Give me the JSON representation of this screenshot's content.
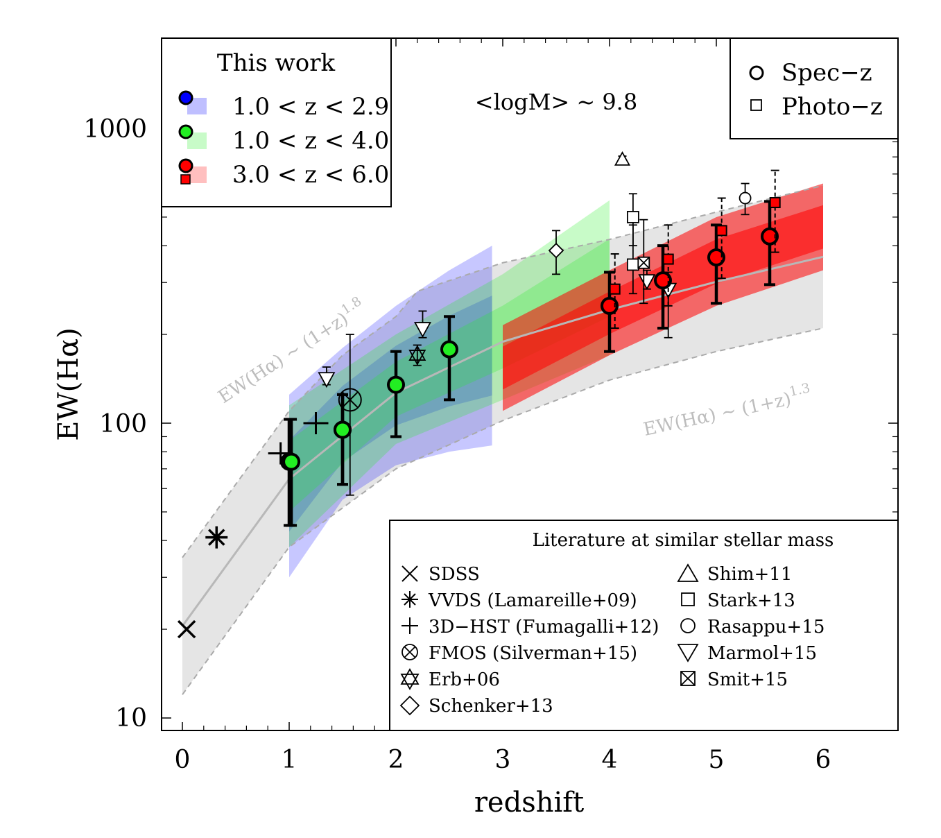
{
  "chart_data": {
    "type": "scatter",
    "xlabel": "redshift",
    "ylabel": "EW(Hα)",
    "xlim": [
      -0.2,
      6.7
    ],
    "ylim": [
      9,
      1800
    ],
    "yscale": "log",
    "x_ticks": [
      "0",
      "1",
      "2",
      "3",
      "4",
      "5",
      "6"
    ],
    "y_ticks": [
      "10",
      "100",
      "1000"
    ],
    "annotation_mass": "<logM> ~ 9.8",
    "curve_labels": {
      "upper": "EW(Hα) ~ (1+z)",
      "upper_exp": "1.8",
      "lower": "EW(Hα) ~ (1+z)",
      "lower_exp": "1.3"
    },
    "legend_this_work": {
      "title": "This work",
      "entries": [
        {
          "label": "1.0 < z < 2.9",
          "color": "#0000ff"
        },
        {
          "label": "1.0 < z < 4.0",
          "color": "#22ee22"
        },
        {
          "label": "3.0 < z < 6.0",
          "color": "#ff0000"
        }
      ]
    },
    "legend_marker": {
      "entries": [
        "Spec−z",
        "Photo−z"
      ]
    },
    "legend_literature": {
      "title": "Literature at similar stellar mass",
      "left": [
        "SDSS",
        "VVDS (Lamareille+09)",
        "3D−HST (Fumagalli+12)",
        "FMOS (Silverman+15)",
        "Erb+06",
        "Schenker+13"
      ],
      "right": [
        "Shim+11",
        "Stark+13",
        "Rasappu+15",
        "Marmol+15",
        "Smit+15"
      ]
    },
    "bands": [
      {
        "name": "grey",
        "color": "#cfcfcf",
        "upper": [
          [
            0,
            35
          ],
          [
            1,
            110
          ],
          [
            1.5,
            170
          ],
          [
            2,
            230
          ],
          [
            2.2,
            280
          ],
          [
            3,
            350
          ],
          [
            4,
            420
          ],
          [
            5,
            520
          ],
          [
            6,
            640
          ]
        ],
        "lower": [
          [
            0,
            12
          ],
          [
            1,
            38
          ],
          [
            2,
            70
          ],
          [
            3,
            102
          ],
          [
            4,
            140
          ],
          [
            5,
            175
          ],
          [
            6,
            210
          ]
        ]
      },
      {
        "name": "blue",
        "color": "#0000ff",
        "upper": [
          [
            1,
            125
          ],
          [
            1.5,
            180
          ],
          [
            2,
            250
          ],
          [
            2.5,
            330
          ],
          [
            2.9,
            400
          ]
        ],
        "lower": [
          [
            1,
            30
          ],
          [
            1.5,
            55
          ],
          [
            2,
            72
          ],
          [
            2.5,
            80
          ],
          [
            2.9,
            84
          ]
        ]
      },
      {
        "name": "green",
        "color": "#22ee22",
        "upper": [
          [
            1,
            115
          ],
          [
            2,
            200
          ],
          [
            3,
            320
          ],
          [
            4,
            570
          ]
        ],
        "lower": [
          [
            1,
            38
          ],
          [
            2,
            85
          ],
          [
            3,
            120
          ],
          [
            4,
            170
          ]
        ]
      },
      {
        "name": "red",
        "color": "#ff0000",
        "upper": [
          [
            3,
            215
          ],
          [
            4,
            330
          ],
          [
            5,
            500
          ],
          [
            6,
            650
          ]
        ],
        "lower": [
          [
            3,
            110
          ],
          [
            4,
            170
          ],
          [
            5,
            250
          ],
          [
            6,
            330
          ]
        ]
      }
    ],
    "this_work": [
      {
        "color": "#0000ff",
        "marker": "circle",
        "x": 1.0,
        "y": 74,
        "lo": 45,
        "hi": 103
      },
      {
        "color": "#0000ff",
        "marker": "circle",
        "x": 1.5,
        "y": 95,
        "lo": 62,
        "hi": 125
      },
      {
        "color": "#22ee22",
        "marker": "circle",
        "x": 1.02,
        "y": 74,
        "lo": 45,
        "hi": 103
      },
      {
        "color": "#22ee22",
        "marker": "circle",
        "x": 1.5,
        "y": 95,
        "lo": 62,
        "hi": 125
      },
      {
        "color": "#22ee22",
        "marker": "circle",
        "x": 2.0,
        "y": 135,
        "lo": 90,
        "hi": 175
      },
      {
        "color": "#22ee22",
        "marker": "circle",
        "x": 2.5,
        "y": 178,
        "lo": 120,
        "hi": 230
      },
      {
        "color": "#ff0000",
        "marker": "circle",
        "x": 4.0,
        "y": 250,
        "lo": 175,
        "hi": 325
      },
      {
        "color": "#ff0000",
        "marker": "circle",
        "x": 4.5,
        "y": 305,
        "lo": 210,
        "hi": 400
      },
      {
        "color": "#ff0000",
        "marker": "circle",
        "x": 5.0,
        "y": 365,
        "lo": 255,
        "hi": 470
      },
      {
        "color": "#ff0000",
        "marker": "circle",
        "x": 5.5,
        "y": 430,
        "lo": 295,
        "hi": 565
      },
      {
        "color": "#ff0000",
        "marker": "square",
        "x": 4.05,
        "y": 285,
        "lo": 210,
        "hi": 375
      },
      {
        "color": "#ff0000",
        "marker": "square",
        "x": 4.55,
        "y": 360,
        "lo": 250,
        "hi": 470
      },
      {
        "color": "#ff0000",
        "marker": "square",
        "x": 5.05,
        "y": 450,
        "lo": 310,
        "hi": 580
      },
      {
        "color": "#ff0000",
        "marker": "square",
        "x": 5.55,
        "y": 560,
        "lo": 380,
        "hi": 720
      }
    ],
    "literature": [
      {
        "name": "SDSS",
        "marker": "x",
        "x": 0.04,
        "y": 20
      },
      {
        "name": "VVDS (Lamareille+09)",
        "marker": "asterisk",
        "x": 0.32,
        "y": 41
      },
      {
        "name": "3D−HST (Fumagalli+12)",
        "marker": "plus",
        "x": 0.92,
        "y": 79
      },
      {
        "name": "3D−HST (Fumagalli+12)",
        "marker": "plus",
        "x": 1.25,
        "y": 100
      },
      {
        "name": "FMOS (Silverman+15)",
        "marker": "xcircle",
        "x": 1.57,
        "y": 120,
        "lo": 57,
        "hi": 200
      },
      {
        "name": "Erb+06",
        "marker": "star6",
        "x": 2.2,
        "y": 170,
        "lo": 157,
        "hi": 184
      },
      {
        "name": "Schenker+13",
        "marker": "diamond",
        "x": 3.5,
        "y": 385,
        "lo": 320,
        "hi": 450
      },
      {
        "name": "Shim+11",
        "marker": "triangle_up",
        "x": 4.12,
        "y": 780,
        "lo": 755,
        "hi": 805
      },
      {
        "name": "Stark+13",
        "marker": "square_open",
        "x": 4.22,
        "y": 500,
        "lo": 400,
        "hi": 600
      },
      {
        "name": "Stark+13",
        "marker": "square_open",
        "x": 4.22,
        "y": 345,
        "lo": 275,
        "hi": 470
      },
      {
        "name": "Rasappu+15",
        "marker": "circle_open",
        "x": 5.27,
        "y": 580,
        "lo": 510,
        "hi": 650
      },
      {
        "name": "Marmol+15",
        "marker": "triangle_down",
        "x": 1.35,
        "y": 142,
        "lo": 135,
        "hi": 155
      },
      {
        "name": "Marmol+15",
        "marker": "triangle_down",
        "x": 2.25,
        "y": 210,
        "lo": 195,
        "hi": 240
      },
      {
        "name": "Marmol+15",
        "marker": "triangle_down",
        "x": 4.35,
        "y": 305,
        "lo": 285,
        "hi": 330
      },
      {
        "name": "Marmol+15",
        "marker": "triangle_down",
        "x": 4.55,
        "y": 285,
        "lo": 195,
        "hi": 325
      },
      {
        "name": "Smit+15",
        "marker": "xsquare",
        "x": 4.32,
        "y": 350,
        "lo": 255,
        "hi": 490
      }
    ]
  }
}
